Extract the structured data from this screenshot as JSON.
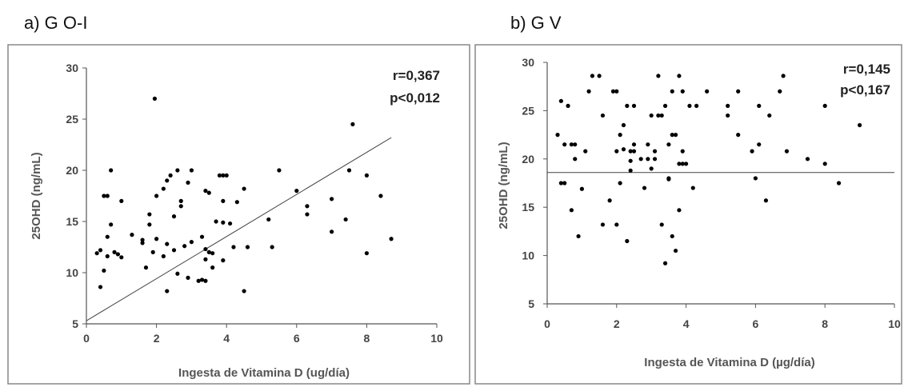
{
  "chart_data": [
    {
      "type": "scatter",
      "title": "a) G O-I",
      "xlabel": "Ingesta de Vitamina D (ug/día)",
      "ylabel": "25OHD (ng/mL)",
      "xlim": [
        0,
        10
      ],
      "ylim": [
        5,
        30
      ],
      "xticks": [
        "0",
        "2",
        "4",
        "6",
        "8",
        "10"
      ],
      "yticks": [
        "5",
        "10",
        "15",
        "20",
        "25",
        "30"
      ],
      "annotations": [
        "r=0,367",
        "p<0,012"
      ],
      "trendline": {
        "x": [
          0,
          8.7
        ],
        "y": [
          5.3,
          23.2
        ]
      },
      "points": [
        [
          0.3,
          11.9
        ],
        [
          0.4,
          12.2
        ],
        [
          0.4,
          8.6
        ],
        [
          0.5,
          17.5
        ],
        [
          0.5,
          10.2
        ],
        [
          0.6,
          17.5
        ],
        [
          0.6,
          13.5
        ],
        [
          0.6,
          11.6
        ],
        [
          0.7,
          14.7
        ],
        [
          0.7,
          20.0
        ],
        [
          0.8,
          12.0
        ],
        [
          0.9,
          11.8
        ],
        [
          1.0,
          17.0
        ],
        [
          1.0,
          11.5
        ],
        [
          1.3,
          13.7
        ],
        [
          1.6,
          13.2
        ],
        [
          1.6,
          12.9
        ],
        [
          1.7,
          10.5
        ],
        [
          1.8,
          15.7
        ],
        [
          1.8,
          14.7
        ],
        [
          1.9,
          12.0
        ],
        [
          1.95,
          27.0
        ],
        [
          2.0,
          17.5
        ],
        [
          2.0,
          13.3
        ],
        [
          2.2,
          18.2
        ],
        [
          2.2,
          11.6
        ],
        [
          2.3,
          19.0
        ],
        [
          2.3,
          12.8
        ],
        [
          2.3,
          8.2
        ],
        [
          2.4,
          19.5
        ],
        [
          2.5,
          12.2
        ],
        [
          2.5,
          15.5
        ],
        [
          2.6,
          20.0
        ],
        [
          2.6,
          9.9
        ],
        [
          2.7,
          17.0
        ],
        [
          2.7,
          16.5
        ],
        [
          2.8,
          12.6
        ],
        [
          2.9,
          9.5
        ],
        [
          2.9,
          18.8
        ],
        [
          3.0,
          20.0
        ],
        [
          3.0,
          13.0
        ],
        [
          3.2,
          9.2
        ],
        [
          3.3,
          9.3
        ],
        [
          3.3,
          13.5
        ],
        [
          3.4,
          12.3
        ],
        [
          3.4,
          9.2
        ],
        [
          3.4,
          18.0
        ],
        [
          3.4,
          11.3
        ],
        [
          3.5,
          12.0
        ],
        [
          3.5,
          17.8
        ],
        [
          3.6,
          10.5
        ],
        [
          3.6,
          11.9
        ],
        [
          3.7,
          15.0
        ],
        [
          3.8,
          19.5
        ],
        [
          3.9,
          17.0
        ],
        [
          3.9,
          11.2
        ],
        [
          3.9,
          14.9
        ],
        [
          3.9,
          19.5
        ],
        [
          4.0,
          19.5
        ],
        [
          4.1,
          14.8
        ],
        [
          4.2,
          12.5
        ],
        [
          4.3,
          16.9
        ],
        [
          4.5,
          18.2
        ],
        [
          4.5,
          8.2
        ],
        [
          4.6,
          12.5
        ],
        [
          5.2,
          15.2
        ],
        [
          5.3,
          12.5
        ],
        [
          5.5,
          20.0
        ],
        [
          6.0,
          18.0
        ],
        [
          6.3,
          16.5
        ],
        [
          6.3,
          15.7
        ],
        [
          7.0,
          17.2
        ],
        [
          7.0,
          14.0
        ],
        [
          7.4,
          15.2
        ],
        [
          7.5,
          20.0
        ],
        [
          7.6,
          24.5
        ],
        [
          8.0,
          19.5
        ],
        [
          8.0,
          11.9
        ],
        [
          8.4,
          17.5
        ],
        [
          8.7,
          13.3
        ]
      ]
    },
    {
      "type": "scatter",
      "title": "b) G V",
      "xlabel": "Ingesta de Vitamina D (µg/día)",
      "ylabel": "25OHD (ng/mL)",
      "xlim": [
        0,
        10
      ],
      "ylim": [
        5,
        30
      ],
      "xticks": [
        "0",
        "2",
        "4",
        "6",
        "8",
        "10"
      ],
      "yticks": [
        "5",
        "10",
        "15",
        "20",
        "25",
        "30"
      ],
      "annotations": [
        "r=0,145",
        "p<0,167"
      ],
      "trendline": {
        "x": [
          0,
          10
        ],
        "y": [
          18.6,
          18.6
        ]
      },
      "points": [
        [
          0.3,
          22.5
        ],
        [
          0.4,
          26.0
        ],
        [
          0.4,
          17.5
        ],
        [
          0.5,
          21.5
        ],
        [
          0.5,
          17.5
        ],
        [
          0.6,
          25.5
        ],
        [
          0.7,
          21.5
        ],
        [
          0.7,
          14.7
        ],
        [
          0.8,
          20.0
        ],
        [
          0.8,
          21.5
        ],
        [
          0.9,
          12.0
        ],
        [
          1.0,
          16.9
        ],
        [
          1.1,
          20.8
        ],
        [
          1.2,
          27.0
        ],
        [
          1.3,
          28.6
        ],
        [
          1.5,
          28.6
        ],
        [
          1.6,
          24.5
        ],
        [
          1.6,
          13.2
        ],
        [
          1.8,
          15.7
        ],
        [
          1.9,
          27.0
        ],
        [
          2.0,
          27.0
        ],
        [
          2.0,
          20.8
        ],
        [
          2.0,
          13.2
        ],
        [
          2.1,
          17.5
        ],
        [
          2.1,
          22.5
        ],
        [
          2.2,
          23.5
        ],
        [
          2.2,
          21.0
        ],
        [
          2.3,
          25.5
        ],
        [
          2.3,
          11.5
        ],
        [
          2.4,
          20.8
        ],
        [
          2.4,
          19.8
        ],
        [
          2.4,
          18.8
        ],
        [
          2.5,
          21.5
        ],
        [
          2.5,
          20.8
        ],
        [
          2.5,
          25.5
        ],
        [
          2.7,
          20.0
        ],
        [
          2.8,
          17.0
        ],
        [
          2.9,
          21.5
        ],
        [
          2.9,
          20.0
        ],
        [
          3.0,
          24.5
        ],
        [
          3.0,
          19.0
        ],
        [
          3.1,
          20.8
        ],
        [
          3.1,
          20.0
        ],
        [
          3.2,
          24.5
        ],
        [
          3.2,
          28.6
        ],
        [
          3.3,
          13.2
        ],
        [
          3.3,
          24.5
        ],
        [
          3.4,
          25.5
        ],
        [
          3.4,
          9.2
        ],
        [
          3.5,
          18.0
        ],
        [
          3.5,
          17.9
        ],
        [
          3.5,
          21.5
        ],
        [
          3.6,
          12.0
        ],
        [
          3.6,
          27.0
        ],
        [
          3.6,
          22.5
        ],
        [
          3.7,
          10.5
        ],
        [
          3.7,
          22.5
        ],
        [
          3.8,
          19.5
        ],
        [
          3.8,
          14.7
        ],
        [
          3.8,
          28.6
        ],
        [
          3.9,
          27.0
        ],
        [
          3.9,
          20.8
        ],
        [
          3.9,
          19.5
        ],
        [
          4.0,
          19.5
        ],
        [
          4.1,
          25.5
        ],
        [
          4.2,
          17.0
        ],
        [
          4.3,
          25.5
        ],
        [
          4.6,
          27.0
        ],
        [
          5.2,
          25.5
        ],
        [
          5.2,
          24.5
        ],
        [
          5.5,
          27.0
        ],
        [
          5.5,
          22.5
        ],
        [
          5.9,
          20.8
        ],
        [
          6.0,
          18.0
        ],
        [
          6.1,
          25.5
        ],
        [
          6.1,
          21.5
        ],
        [
          6.3,
          15.7
        ],
        [
          6.4,
          24.5
        ],
        [
          6.7,
          27.0
        ],
        [
          6.8,
          28.6
        ],
        [
          6.9,
          20.8
        ],
        [
          7.5,
          20.0
        ],
        [
          8.0,
          25.5
        ],
        [
          8.0,
          19.5
        ],
        [
          8.4,
          17.5
        ],
        [
          9.0,
          23.5
        ]
      ]
    }
  ]
}
